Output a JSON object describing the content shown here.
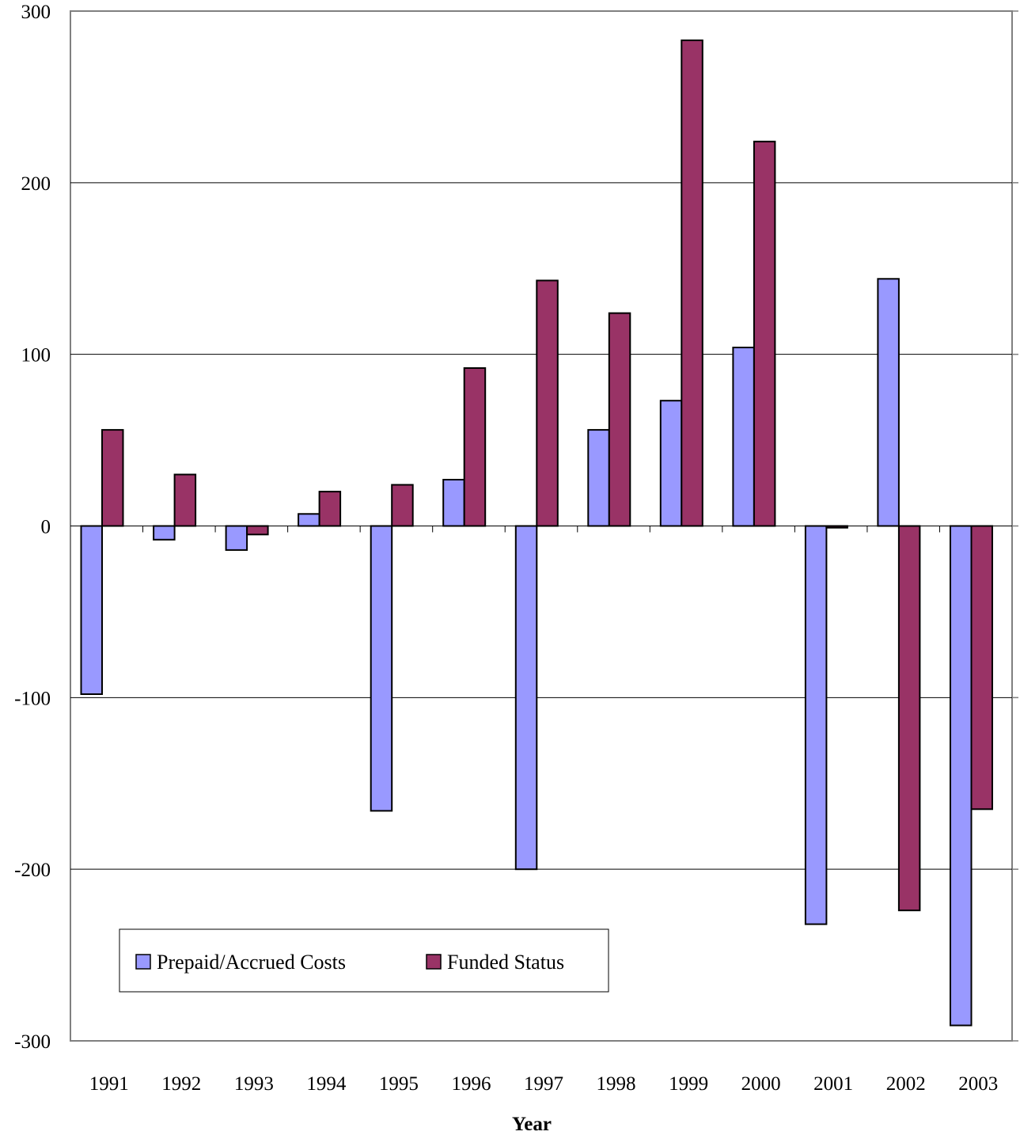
{
  "chart_data": {
    "type": "bar",
    "title": "",
    "xlabel": "Year",
    "ylabel": "",
    "categories": [
      "1991",
      "1992",
      "1993",
      "1994",
      "1995",
      "1996",
      "1997",
      "1998",
      "1999",
      "2000",
      "2001",
      "2002",
      "2003"
    ],
    "series": [
      {
        "name": "Prepaid/Accrued Costs",
        "color": "#9999FF",
        "values": [
          -98,
          -8,
          -14,
          7,
          -166,
          27,
          -200,
          56,
          73,
          104,
          -232,
          144,
          -291
        ]
      },
      {
        "name": "Funded Status",
        "color": "#993366",
        "values": [
          56,
          30,
          -5,
          20,
          24,
          92,
          143,
          124,
          283,
          224,
          -1,
          -224,
          -165
        ]
      }
    ],
    "ylim": [
      -300,
      300
    ],
    "yticks": [
      "300",
      "200",
      "100",
      "0",
      "-100",
      "-200",
      "-300"
    ],
    "grid": true,
    "legend": "bottom-left"
  }
}
